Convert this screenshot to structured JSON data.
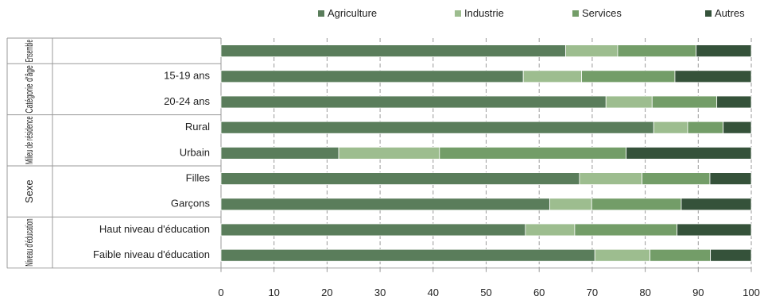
{
  "chart_data": {
    "type": "bar",
    "orientation": "horizontal",
    "stacked": true,
    "xlim": [
      0,
      100
    ],
    "x_ticks": [
      0,
      10,
      20,
      30,
      40,
      50,
      60,
      70,
      80,
      90,
      100
    ],
    "grid": true,
    "legend_position": "top-right",
    "groups": [
      {
        "label": "Ensemble",
        "categories": [
          ""
        ]
      },
      {
        "label": "Catégorie d'âge",
        "categories": [
          "15-19 ans",
          "20-24 ans"
        ]
      },
      {
        "label": "Milieu de résidence",
        "categories": [
          "Rural",
          "Urbain"
        ]
      },
      {
        "label": "Sexe",
        "categories": [
          "Filles",
          "Garçons"
        ]
      },
      {
        "label": "Niveau d'éducation",
        "categories": [
          "Haut niveau d'éducation",
          "Faible niveau d'éducation"
        ]
      }
    ],
    "categories": [
      "",
      "15-19 ans",
      "20-24 ans",
      "Rural",
      "Urbain",
      "Filles",
      "Garçons",
      "Haut niveau d'éducation",
      "Faible niveau d'éducation"
    ],
    "series": [
      {
        "name": "Agriculture",
        "color": "#5a7d5b",
        "values": [
          65.0,
          57.0,
          72.6,
          81.6,
          22.2,
          67.6,
          62.0,
          57.4,
          70.5
        ]
      },
      {
        "name": "Industrie",
        "color": "#9dbd8f",
        "values": [
          9.8,
          11.0,
          8.7,
          6.4,
          19.0,
          11.8,
          7.9,
          9.3,
          10.4
        ]
      },
      {
        "name": "Services",
        "color": "#739d68",
        "values": [
          14.8,
          17.6,
          12.2,
          6.7,
          35.2,
          12.8,
          16.9,
          19.3,
          11.4
        ]
      },
      {
        "name": "Autres",
        "color": "#35523a",
        "values": [
          10.4,
          14.4,
          6.5,
          5.3,
          23.6,
          7.8,
          13.2,
          14.0,
          7.7
        ]
      }
    ]
  }
}
